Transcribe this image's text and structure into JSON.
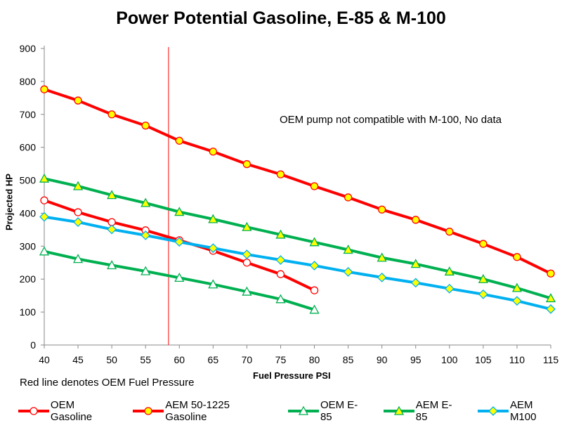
{
  "chart_data": {
    "type": "line",
    "title": "Power Potential Gasoline, E-85 & M-100",
    "xlabel": "Fuel Pressure PSI",
    "ylabel": "Projected HP",
    "xlim": [
      40,
      115
    ],
    "ylim": [
      0,
      900
    ],
    "x_ticks": [
      40,
      45,
      50,
      55,
      60,
      65,
      70,
      75,
      80,
      85,
      90,
      95,
      100,
      105,
      110,
      115
    ],
    "y_ticks": [
      0,
      100,
      200,
      300,
      400,
      500,
      600,
      700,
      800,
      900
    ],
    "grid": false,
    "legend_position": "bottom",
    "reference_line": {
      "x": 58.4,
      "color": "#ff0000"
    },
    "note": "Red line denotes OEM Fuel Pressure",
    "annotation": "OEM pump not compatible with M-100, No data",
    "series": [
      {
        "name": "OEM Gasoline",
        "color": "#ff0000",
        "marker": "circle-open",
        "x": [
          40,
          45,
          50,
          55,
          60,
          65,
          70,
          75,
          80
        ],
        "values": [
          439,
          403,
          373,
          348,
          318,
          286,
          250,
          215,
          166
        ]
      },
      {
        "name": "AEM 50-1225 Gasoline",
        "color": "#ff0000",
        "marker": "circle-yellow",
        "x": [
          40,
          45,
          50,
          55,
          60,
          65,
          70,
          75,
          80,
          85,
          90,
          95,
          100,
          105,
          110,
          115
        ],
        "values": [
          776,
          742,
          700,
          666,
          620,
          587,
          549,
          518,
          482,
          448,
          411,
          380,
          344,
          307,
          267,
          217
        ]
      },
      {
        "name": "OEM E-85",
        "color": "#00b050",
        "marker": "triangle-open",
        "x": [
          40,
          45,
          50,
          55,
          60,
          65,
          70,
          75,
          80
        ],
        "values": [
          284,
          261,
          242,
          224,
          204,
          184,
          162,
          139,
          107
        ]
      },
      {
        "name": "AEM E-85",
        "color": "#00b050",
        "marker": "triangle-yellow",
        "x": [
          40,
          45,
          50,
          55,
          60,
          65,
          70,
          75,
          80,
          85,
          90,
          95,
          100,
          105,
          110,
          115
        ],
        "values": [
          505,
          482,
          455,
          431,
          404,
          382,
          358,
          335,
          312,
          289,
          265,
          246,
          223,
          200,
          173,
          142
        ]
      },
      {
        "name": "AEM M100",
        "color": "#00b0f0",
        "marker": "diamond-yellow",
        "x": [
          40,
          45,
          50,
          55,
          60,
          65,
          70,
          75,
          80,
          85,
          90,
          95,
          100,
          105,
          110,
          115
        ],
        "values": [
          389,
          373,
          351,
          333,
          313,
          294,
          275,
          258,
          241,
          222,
          205,
          189,
          171,
          154,
          134,
          109
        ]
      }
    ]
  }
}
